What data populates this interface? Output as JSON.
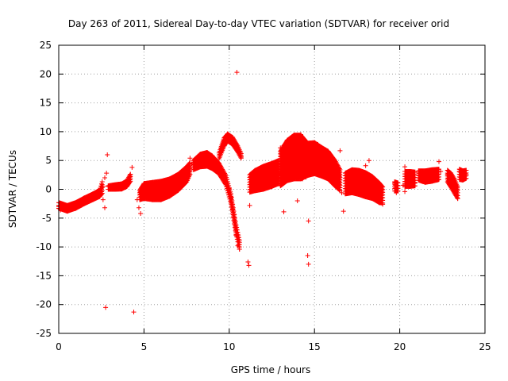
{
  "chart_data": {
    "type": "scatter",
    "title": "Day 263 of 2011, Sidereal Day-to-day VTEC variation (SDTVAR) for receiver orid",
    "xlabel": "GPS time / hours",
    "ylabel": "SDTVAR / TECUs",
    "xlim": [
      0,
      25
    ],
    "ylim": [
      -25,
      25
    ],
    "x_ticks": [
      0,
      5,
      10,
      15,
      20,
      25
    ],
    "x_tick_labels": [
      "0",
      "5",
      "10",
      "15",
      "20",
      "25"
    ],
    "y_ticks": [
      -25,
      -20,
      -15,
      -10,
      -5,
      0,
      5,
      10,
      15,
      20,
      25
    ],
    "y_tick_labels": [
      "-25",
      "-20",
      "-15",
      "-10",
      "-5",
      "0",
      "5",
      "10",
      "15",
      "20",
      "25"
    ],
    "grid": true,
    "marker": "plus",
    "color": "#ff0000",
    "series": [
      {
        "name": "SDTVAR",
        "points": [
          [
            0.0,
            -3.0
          ],
          [
            0.1,
            -3.6
          ],
          [
            0.3,
            -3.4
          ],
          [
            0.5,
            -3.2
          ],
          [
            0.7,
            -3.0
          ],
          [
            0.9,
            -2.8
          ],
          [
            1.1,
            -2.6
          ],
          [
            1.3,
            -2.3
          ],
          [
            1.5,
            -1.9
          ],
          [
            1.7,
            -1.6
          ],
          [
            1.9,
            -1.3
          ],
          [
            2.1,
            -1.1
          ],
          [
            2.3,
            -0.8
          ],
          [
            2.5,
            -0.4
          ],
          [
            2.6,
            0.5
          ],
          [
            2.6,
            -1.8
          ],
          [
            2.7,
            2.0
          ],
          [
            2.8,
            2.8
          ],
          [
            2.7,
            -3.2
          ],
          [
            2.75,
            -20.5
          ],
          [
            2.85,
            6.0
          ],
          [
            2.9,
            0.5
          ],
          [
            3.1,
            0.3
          ],
          [
            3.3,
            0.6
          ],
          [
            3.5,
            0.8
          ],
          [
            3.7,
            0.5
          ],
          [
            3.9,
            1.0
          ],
          [
            4.1,
            1.5
          ],
          [
            4.2,
            2.6
          ],
          [
            4.3,
            3.8
          ],
          [
            4.4,
            -21.3
          ],
          [
            4.6,
            -1.8
          ],
          [
            4.7,
            -3.2
          ],
          [
            4.8,
            -4.2
          ],
          [
            4.9,
            -0.8
          ],
          [
            5.1,
            0.6
          ],
          [
            5.3,
            -0.3
          ],
          [
            5.5,
            -0.5
          ],
          [
            5.7,
            -0.2
          ],
          [
            5.9,
            -0.3
          ],
          [
            6.1,
            -0.1
          ],
          [
            6.3,
            0.2
          ],
          [
            6.5,
            0.4
          ],
          [
            6.7,
            0.7
          ],
          [
            6.9,
            1.1
          ],
          [
            7.1,
            1.6
          ],
          [
            7.3,
            2.2
          ],
          [
            7.5,
            2.7
          ],
          [
            7.6,
            3.8
          ],
          [
            7.7,
            5.4
          ],
          [
            7.8,
            4.4
          ],
          [
            8.0,
            4.4
          ],
          [
            8.2,
            5.1
          ],
          [
            8.4,
            5.6
          ],
          [
            8.6,
            5.6
          ],
          [
            8.8,
            5.1
          ],
          [
            9.0,
            4.6
          ],
          [
            9.2,
            4.0
          ],
          [
            9.4,
            3.4
          ],
          [
            9.6,
            2.6
          ],
          [
            9.8,
            1.6
          ],
          [
            10.0,
            0.1
          ],
          [
            10.1,
            -1.5
          ],
          [
            10.2,
            -3.5
          ],
          [
            10.3,
            -6.0
          ],
          [
            10.4,
            -8.0
          ],
          [
            10.5,
            -9.8
          ],
          [
            10.6,
            -10.4
          ],
          [
            9.5,
            6.4
          ],
          [
            9.7,
            8.4
          ],
          [
            9.9,
            9.3
          ],
          [
            10.1,
            9.0
          ],
          [
            10.3,
            8.1
          ],
          [
            10.5,
            6.9
          ],
          [
            10.7,
            5.6
          ],
          [
            10.45,
            20.3
          ],
          [
            11.1,
            -12.6
          ],
          [
            11.15,
            -13.2
          ],
          [
            11.2,
            -2.8
          ],
          [
            11.3,
            0.8
          ],
          [
            11.5,
            1.5
          ],
          [
            11.7,
            2.0
          ],
          [
            11.9,
            2.8
          ],
          [
            12.1,
            2.4
          ],
          [
            12.3,
            1.6
          ],
          [
            12.5,
            2.6
          ],
          [
            12.7,
            3.6
          ],
          [
            12.9,
            2.8
          ],
          [
            13.1,
            3.0
          ],
          [
            13.0,
            7.2
          ],
          [
            13.2,
            7.6
          ],
          [
            13.4,
            8.0
          ],
          [
            13.6,
            8.4
          ],
          [
            13.8,
            8.9
          ],
          [
            14.0,
            9.3
          ],
          [
            14.2,
            9.5
          ],
          [
            14.4,
            8.5
          ],
          [
            13.5,
            4.6
          ],
          [
            13.7,
            4.1
          ],
          [
            13.9,
            3.5
          ],
          [
            14.1,
            3.0
          ],
          [
            14.3,
            2.5
          ],
          [
            14.5,
            2.1
          ],
          [
            13.2,
            -3.9
          ],
          [
            14.0,
            -2.0
          ],
          [
            14.3,
            1.8
          ],
          [
            14.6,
            5.8
          ],
          [
            14.6,
            -11.5
          ],
          [
            14.65,
            -13.0
          ],
          [
            14.65,
            -5.5
          ],
          [
            14.8,
            7.8
          ],
          [
            15.0,
            8.1
          ],
          [
            15.2,
            7.8
          ],
          [
            15.4,
            7.1
          ],
          [
            15.6,
            6.3
          ],
          [
            15.8,
            5.4
          ],
          [
            16.0,
            3.8
          ],
          [
            15.0,
            3.3
          ],
          [
            15.3,
            2.6
          ],
          [
            15.6,
            2.2
          ],
          [
            15.9,
            2.8
          ],
          [
            16.2,
            2.2
          ],
          [
            16.4,
            1.1
          ],
          [
            16.5,
            6.7
          ],
          [
            16.6,
            -0.6
          ],
          [
            16.7,
            -3.8
          ],
          [
            16.9,
            0.6
          ],
          [
            17.1,
            2.1
          ],
          [
            17.3,
            2.6
          ],
          [
            17.5,
            2.1
          ],
          [
            17.7,
            1.6
          ],
          [
            17.9,
            1.1
          ],
          [
            18.1,
            0.6
          ],
          [
            18.3,
            0.9
          ],
          [
            18.5,
            0.4
          ],
          [
            18.7,
            -0.6
          ],
          [
            18.9,
            -1.6
          ],
          [
            19.0,
            -2.6
          ],
          [
            17.8,
            3.1
          ],
          [
            18.0,
            4.1
          ],
          [
            18.2,
            5.0
          ],
          [
            19.7,
            1.1
          ],
          [
            19.8,
            -0.6
          ],
          [
            19.9,
            0.6
          ],
          [
            20.2,
            0.7
          ],
          [
            20.3,
            3.9
          ],
          [
            20.3,
            -0.4
          ],
          [
            20.5,
            1.6
          ],
          [
            20.8,
            2.1
          ],
          [
            20.9,
            1.2
          ],
          [
            21.2,
            3.1
          ],
          [
            21.5,
            2.1
          ],
          [
            21.8,
            2.6
          ],
          [
            22.0,
            2.1
          ],
          [
            22.2,
            1.6
          ],
          [
            22.3,
            4.8
          ],
          [
            22.4,
            3.1
          ],
          [
            22.8,
            2.6
          ],
          [
            23.0,
            1.6
          ],
          [
            23.2,
            -0.4
          ],
          [
            23.4,
            -1.6
          ],
          [
            23.5,
            3.1
          ],
          [
            23.7,
            2.1
          ],
          [
            23.9,
            2.6
          ]
        ],
        "ribbons": [
          [
            [
              0.0,
              -2.8,
              1.0
            ],
            [
              0.5,
              -3.3,
              1.0
            ],
            [
              1.0,
              -2.8,
              1.0
            ],
            [
              1.5,
              -2.0,
              1.0
            ],
            [
              2.0,
              -1.3,
              1.0
            ],
            [
              2.4,
              -0.7,
              1.1
            ],
            [
              2.55,
              0.3,
              2.0
            ]
          ],
          [
            [
              2.9,
              0.3,
              0.6
            ],
            [
              3.3,
              0.4,
              0.8
            ],
            [
              3.7,
              0.5,
              0.9
            ],
            [
              4.0,
              1.0,
              1.0
            ],
            [
              4.2,
              2.0,
              1.2
            ]
          ],
          [
            [
              4.75,
              -1.0,
              1.6
            ],
            [
              5.0,
              -0.3,
              2.6
            ],
            [
              5.5,
              -0.3,
              3.0
            ],
            [
              6.0,
              -0.2,
              3.2
            ],
            [
              6.5,
              0.3,
              3.0
            ],
            [
              7.0,
              1.2,
              2.8
            ],
            [
              7.5,
              2.6,
              2.6
            ],
            [
              7.7,
              3.6,
              2.0
            ]
          ],
          [
            [
              7.9,
              4.2,
              1.6
            ],
            [
              8.3,
              5.0,
              2.2
            ],
            [
              8.7,
              5.2,
              2.4
            ],
            [
              9.0,
              4.7,
              2.2
            ],
            [
              9.4,
              3.6,
              1.8
            ],
            [
              9.8,
              1.6,
              1.6
            ],
            [
              10.1,
              -1.6,
              1.6
            ],
            [
              10.4,
              -7.0,
              1.6
            ],
            [
              10.6,
              -9.6,
              1.6
            ]
          ],
          [
            [
              9.4,
              5.8,
              1.0
            ],
            [
              9.7,
              8.2,
              1.4
            ],
            [
              9.9,
              9.0,
              1.2
            ],
            [
              10.2,
              8.4,
              1.2
            ],
            [
              10.5,
              7.0,
              1.0
            ],
            [
              10.7,
              5.8,
              0.8
            ]
          ],
          [
            [
              11.2,
              1.0,
              3.0
            ],
            [
              11.5,
              1.5,
              3.5
            ],
            [
              12.0,
              2.0,
              4.0
            ],
            [
              12.5,
              2.5,
              4.0
            ],
            [
              12.9,
              3.0,
              4.0
            ]
          ],
          [
            [
              13.0,
              3.6,
              6.0
            ],
            [
              13.4,
              5.0,
              7.0
            ],
            [
              13.8,
              5.6,
              7.6
            ],
            [
              14.2,
              5.6,
              7.6
            ],
            [
              14.6,
              5.2,
              5.6
            ],
            [
              15.0,
              5.4,
              5.4
            ],
            [
              15.4,
              4.8,
              5.0
            ],
            [
              15.8,
              4.2,
              4.8
            ],
            [
              16.2,
              2.8,
              4.4
            ],
            [
              16.5,
              1.6,
              3.6
            ]
          ],
          [
            [
              16.8,
              1.0,
              3.6
            ],
            [
              17.2,
              1.4,
              4.0
            ],
            [
              17.6,
              1.2,
              4.2
            ],
            [
              18.0,
              0.8,
              4.2
            ],
            [
              18.4,
              0.3,
              3.8
            ],
            [
              18.8,
              -0.6,
              3.4
            ],
            [
              19.0,
              -1.0,
              2.8
            ]
          ],
          [
            [
              19.7,
              0.5,
              1.6
            ],
            [
              19.9,
              0.4,
              1.4
            ]
          ],
          [
            [
              20.3,
              1.8,
              2.6
            ],
            [
              20.6,
              1.8,
              2.6
            ],
            [
              20.9,
              1.8,
              2.4
            ]
          ],
          [
            [
              21.1,
              2.4,
              1.6
            ],
            [
              21.5,
              2.2,
              2.0
            ],
            [
              21.9,
              2.4,
              2.0
            ],
            [
              22.3,
              2.6,
              1.8
            ]
          ],
          [
            [
              22.8,
              2.3,
              2.0
            ],
            [
              23.0,
              1.6,
              2.4
            ],
            [
              23.2,
              0.6,
              2.4
            ],
            [
              23.4,
              -0.6,
              2.0
            ]
          ],
          [
            [
              23.5,
              2.6,
              1.8
            ],
            [
              23.7,
              2.4,
              1.6
            ],
            [
              23.9,
              2.6,
              1.4
            ]
          ]
        ]
      }
    ]
  }
}
